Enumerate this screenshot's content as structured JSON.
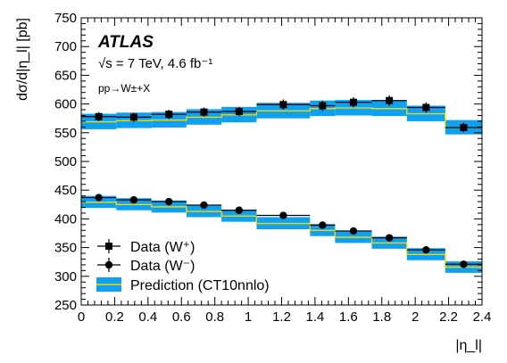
{
  "chart_data": {
    "type": "line",
    "experiment": "ATLAS",
    "energy_text": "√s = 7 TeV, 4.6 fb⁻¹",
    "process_text": "pp→W±+X",
    "xlabel": "|η_l|",
    "ylabel": "dσ/d|η_l| [pb]",
    "xlim": [
      0,
      2.4
    ],
    "ylim": [
      250,
      750
    ],
    "x_ticks": [
      "0",
      "0.2",
      "0.4",
      "0.6",
      "0.8",
      "1",
      "1.2",
      "1.4",
      "1.6",
      "1.8",
      "2",
      "2.2",
      "2.4"
    ],
    "y_ticks": [
      "250",
      "300",
      "350",
      "400",
      "450",
      "500",
      "550",
      "600",
      "650",
      "700",
      "750"
    ],
    "bin_edges": [
      0,
      0.21,
      0.42,
      0.63,
      0.84,
      1.05,
      1.37,
      1.52,
      1.74,
      1.95,
      2.18,
      2.4
    ],
    "bin_centers": [
      0.105,
      0.315,
      0.525,
      0.735,
      0.945,
      1.21,
      1.445,
      1.63,
      1.845,
      2.065,
      2.29
    ],
    "series": [
      {
        "name": "Data (W⁺)",
        "marker": "square",
        "values": [
          578,
          577,
          582,
          586,
          587,
          599,
          597,
          603,
          606,
          594,
          559
        ],
        "errors": [
          8,
          8,
          8,
          8,
          8,
          9,
          9,
          9,
          9,
          9,
          8
        ]
      },
      {
        "name": "Data (W⁻)",
        "marker": "circle",
        "values": [
          437,
          433,
          430,
          424,
          415,
          406,
          389,
          379,
          367,
          346,
          321
        ],
        "errors": [
          6,
          6,
          6,
          6,
          6,
          6,
          6,
          6,
          6,
          5,
          5
        ]
      }
    ],
    "prediction": {
      "name": "Prediction (CT10nnlo)",
      "band_color": "#0fa0f0",
      "line_color": "#f0d800",
      "wplus": {
        "central": [
          569,
          571,
          572,
          577,
          581,
          588,
          592,
          593,
          592,
          583,
          559
        ],
        "lo": [
          556,
          558,
          559,
          564,
          568,
          575,
          579,
          580,
          579,
          570,
          547
        ],
        "hi": [
          583,
          585,
          586,
          591,
          595,
          602,
          606,
          607,
          606,
          597,
          572
        ]
      },
      "wminus": {
        "central": [
          429,
          425,
          421,
          413,
          405,
          392,
          380,
          368,
          358,
          338,
          316
        ],
        "lo": [
          419,
          415,
          411,
          403,
          395,
          382,
          370,
          358,
          348,
          328,
          306
        ],
        "hi": [
          440,
          436,
          432,
          424,
          416,
          403,
          391,
          379,
          369,
          349,
          326
        ]
      }
    },
    "legend_position": "bottom-left",
    "grid": false
  }
}
